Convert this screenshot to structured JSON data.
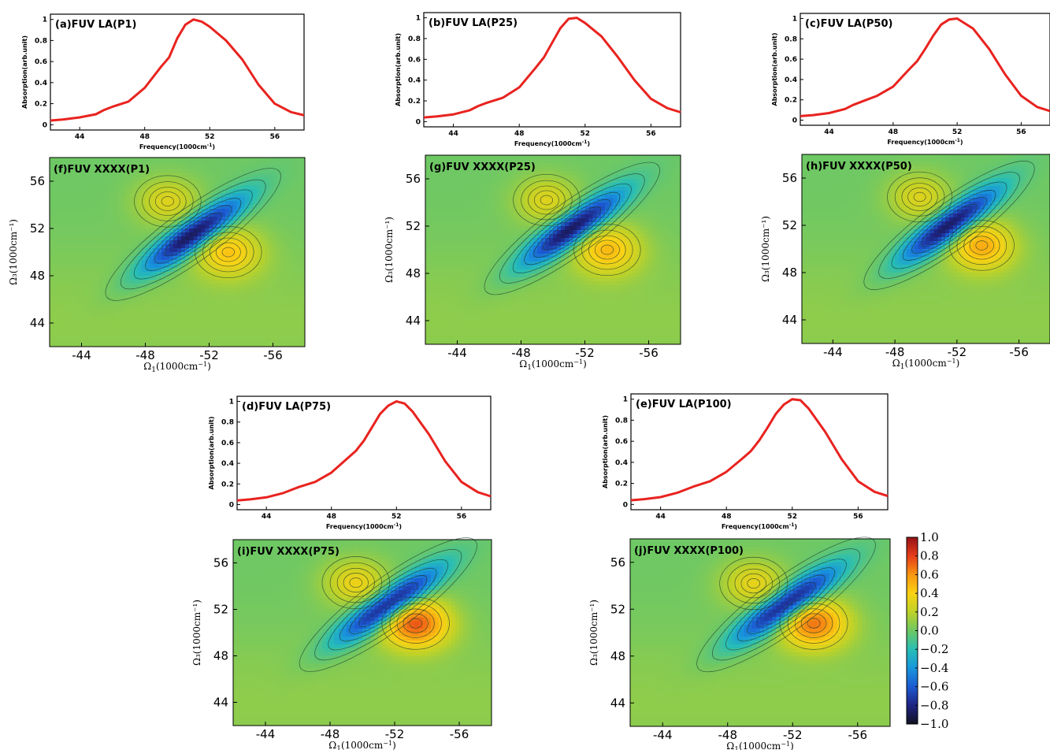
{
  "chart_data": {
    "type": "figure",
    "colorbar": {
      "ticks": [
        "1.0",
        "0.8",
        "0.6",
        "0.4",
        "0.2",
        "0.0",
        "−0.2",
        "−0.4",
        "−0.6",
        "−0.8",
        "−1.0"
      ],
      "range": [
        -1.0,
        1.0
      ],
      "colormap": "parula-jet"
    },
    "absorption_panels": [
      {
        "id": "a",
        "title": "(a)FUV LA(P1)",
        "type": "line",
        "xlabel": "Frequency(1000cm",
        "xlabel_sup": "-1",
        "xlabel_end": ")",
        "ylabel": "Absorption(arb.unit)",
        "xticks": [
          "44",
          "48",
          "52",
          "56"
        ],
        "yticks": [
          "0",
          "0.2",
          "0.4",
          "0.6",
          "0.8",
          "1"
        ],
        "xlim": [
          42.2,
          57.8
        ],
        "ylim": [
          -0.05,
          1.05
        ],
        "peak": 51.0,
        "series": [
          {
            "color": "#e8231f",
            "x": [
              42.2,
              43,
              44,
              45,
              45.5,
              46,
              47,
              48,
              49,
              49.5,
              50,
              50.5,
              51,
              51.5,
              52,
              53,
              54,
              55,
              56,
              57,
              57.8
            ],
            "y": [
              0.04,
              0.05,
              0.07,
              0.1,
              0.14,
              0.17,
              0.22,
              0.35,
              0.55,
              0.64,
              0.82,
              0.95,
              1.0,
              0.98,
              0.93,
              0.8,
              0.62,
              0.38,
              0.2,
              0.12,
              0.09
            ]
          }
        ]
      },
      {
        "id": "b",
        "title": "(b)FUV LA(P25)",
        "type": "line",
        "xlabel": "Frequency(1000cm",
        "xlabel_sup": "-1",
        "xlabel_end": ")",
        "ylabel": "Absorption(arb.unit)",
        "xticks": [
          "44",
          "48",
          "52",
          "56"
        ],
        "yticks": [
          "0",
          "0.2",
          "0.4",
          "0.6",
          "0.8",
          "1"
        ],
        "xlim": [
          42.2,
          57.8
        ],
        "ylim": [
          -0.05,
          1.05
        ],
        "peak": 51.3,
        "series": [
          {
            "color": "#e8231f",
            "x": [
              42.2,
              43,
              44,
              45,
              45.5,
              46,
              47,
              48,
              49,
              49.5,
              50,
              50.5,
              51,
              51.5,
              52,
              53,
              54,
              55,
              56,
              57,
              57.8
            ],
            "y": [
              0.04,
              0.05,
              0.07,
              0.11,
              0.15,
              0.18,
              0.23,
              0.33,
              0.52,
              0.62,
              0.76,
              0.9,
              0.99,
              1.0,
              0.95,
              0.82,
              0.62,
              0.4,
              0.22,
              0.13,
              0.09
            ]
          }
        ]
      },
      {
        "id": "c",
        "title": "(c)FUV LA(P50)",
        "type": "line",
        "xlabel": "Frequency(1000cm",
        "xlabel_sup": "-1",
        "xlabel_end": ")",
        "ylabel": "Absorption(arb.unit)",
        "xticks": [
          "44",
          "48",
          "52",
          "56"
        ],
        "yticks": [
          "0",
          "0.2",
          "0.4",
          "0.6",
          "0.8",
          "1"
        ],
        "xlim": [
          42.2,
          57.8
        ],
        "ylim": [
          -0.05,
          1.05
        ],
        "peak": 51.8,
        "series": [
          {
            "color": "#e8231f",
            "x": [
              42.2,
              43,
              44,
              45,
              45.5,
              46,
              47,
              48,
              49,
              49.5,
              50,
              50.5,
              51,
              51.5,
              52,
              53,
              54,
              55,
              56,
              57,
              57.8
            ],
            "y": [
              0.04,
              0.05,
              0.07,
              0.11,
              0.15,
              0.18,
              0.24,
              0.33,
              0.5,
              0.58,
              0.7,
              0.83,
              0.94,
              0.99,
              1.0,
              0.9,
              0.7,
              0.45,
              0.24,
              0.13,
              0.09
            ]
          }
        ]
      },
      {
        "id": "d",
        "title": "(d)FUV LA(P75)",
        "type": "line",
        "xlabel": "Frequency(1000cm",
        "xlabel_sup": "-1",
        "xlabel_end": ")",
        "ylabel": "Absorption(arb.unit)",
        "xticks": [
          "44",
          "48",
          "52",
          "56"
        ],
        "yticks": [
          "0",
          "0.2",
          "0.4",
          "0.6",
          "0.8",
          "1"
        ],
        "xlim": [
          42.2,
          57.8
        ],
        "ylim": [
          -0.05,
          1.05
        ],
        "peak": 52.1,
        "series": [
          {
            "color": "#e8231f",
            "x": [
              42.2,
              43,
              44,
              45,
              45.5,
              46,
              47,
              48,
              49,
              49.5,
              50,
              50.5,
              51,
              51.5,
              52,
              52.5,
              53,
              54,
              55,
              56,
              57,
              57.8
            ],
            "y": [
              0.04,
              0.05,
              0.07,
              0.11,
              0.14,
              0.17,
              0.22,
              0.31,
              0.45,
              0.52,
              0.62,
              0.75,
              0.88,
              0.96,
              1.0,
              0.98,
              0.9,
              0.68,
              0.42,
              0.22,
              0.12,
              0.08
            ]
          }
        ]
      },
      {
        "id": "e",
        "title": "(e)FUV LA(P100)",
        "type": "line",
        "xlabel": "Frequency(1000cm",
        "xlabel_sup": "-1",
        "xlabel_end": ")",
        "ylabel": "Absorption(arb.unit)",
        "xticks": [
          "44",
          "48",
          "52",
          "56"
        ],
        "yticks": [
          "0",
          "0.2",
          "0.4",
          "0.6",
          "0.8",
          "1"
        ],
        "xlim": [
          42.2,
          57.8
        ],
        "ylim": [
          -0.05,
          1.05
        ],
        "peak": 52.2,
        "series": [
          {
            "color": "#e8231f",
            "x": [
              42.2,
              43,
              44,
              45,
              45.5,
              46,
              47,
              48,
              49,
              49.5,
              50,
              50.5,
              51,
              51.5,
              52,
              52.5,
              53,
              54,
              55,
              56,
              57,
              57.8
            ],
            "y": [
              0.04,
              0.05,
              0.07,
              0.11,
              0.14,
              0.17,
              0.22,
              0.31,
              0.44,
              0.51,
              0.61,
              0.73,
              0.86,
              0.95,
              1.0,
              0.99,
              0.91,
              0.69,
              0.43,
              0.22,
              0.12,
              0.08
            ]
          }
        ]
      }
    ],
    "spectra_panels": [
      {
        "id": "f",
        "title": "(f)FUV XXXX(P1)",
        "type": "heatmap",
        "xlabel": "Ω",
        "xlabel_sub": "1",
        "xlabel_end": "(1000cm",
        "xlabel_sup": "−1",
        "xlabel_close": ")",
        "ylabel": "Ω₃(1000cm⁻¹)",
        "xticks": [
          "-44",
          "-48",
          "-52",
          "-56"
        ],
        "yticks": [
          "44",
          "48",
          "52",
          "56"
        ],
        "xlim": [
          -42,
          -58
        ],
        "ylim": [
          42,
          58
        ],
        "features": {
          "center": [
            -51.0,
            51.5
          ],
          "neg_amp": -1.0,
          "pos_low": [
            -53.2,
            50.0,
            0.42
          ],
          "pos_up": [
            -49.4,
            54.3,
            0.3
          ]
        }
      },
      {
        "id": "g",
        "title": "(g)FUV XXXX(P25)",
        "type": "heatmap",
        "xlabel": "Ω",
        "xlabel_sub": "1",
        "xlabel_end": "(1000cm",
        "xlabel_sup": "−1",
        "xlabel_close": ")",
        "ylabel": "Ω₃(1000cm⁻¹)",
        "xticks": [
          "-44",
          "-48",
          "-52",
          "-56"
        ],
        "yticks": [
          "44",
          "48",
          "52",
          "56"
        ],
        "xlim": [
          -42,
          -58
        ],
        "ylim": [
          42,
          58
        ],
        "features": {
          "center": [
            -51.2,
            51.8
          ],
          "neg_amp": -1.0,
          "pos_low": [
            -53.4,
            50.0,
            0.45
          ],
          "pos_up": [
            -49.6,
            54.2,
            0.3
          ]
        }
      },
      {
        "id": "h",
        "title": "(h)FUV XXXX(P50)",
        "type": "heatmap",
        "xlabel": "Ω",
        "xlabel_sub": "1",
        "xlabel_end": "(1000cm",
        "xlabel_sup": "−1",
        "xlabel_close": ")",
        "ylabel": "Ω₃(1000cm⁻¹)",
        "xticks": [
          "-44",
          "-48",
          "-52",
          "-56"
        ],
        "yticks": [
          "44",
          "48",
          "52",
          "56"
        ],
        "xlim": [
          -42,
          -58
        ],
        "ylim": [
          42,
          58
        ],
        "features": {
          "center": [
            -51.5,
            52.0
          ],
          "neg_amp": -1.0,
          "pos_low": [
            -53.6,
            50.3,
            0.5
          ],
          "pos_up": [
            -49.6,
            54.4,
            0.3
          ]
        }
      },
      {
        "id": "i",
        "title": "(i)FUV XXXX(P75)",
        "type": "heatmap",
        "xlabel": "Ω",
        "xlabel_sub": "1",
        "xlabel_end": "(1000cm",
        "xlabel_sup": "−1",
        "xlabel_close": ")",
        "ylabel": "Ω₃(1000cm⁻¹)",
        "xticks": [
          "-44",
          "-48",
          "-52",
          "-56"
        ],
        "yticks": [
          "44",
          "48",
          "52",
          "56"
        ],
        "xlim": [
          -42,
          -58
        ],
        "ylim": [
          42,
          58
        ],
        "features": {
          "center": [
            -51.6,
            52.4
          ],
          "neg_amp": -1.0,
          "pos_low": [
            -53.3,
            50.8,
            0.72
          ],
          "pos_up": [
            -49.6,
            54.3,
            0.35
          ]
        }
      },
      {
        "id": "j",
        "title": "(j)FUV XXXX(P100)",
        "type": "heatmap",
        "xlabel": "Ω",
        "xlabel_sub": "1",
        "xlabel_end": "(1000cm",
        "xlabel_sup": "−1",
        "xlabel_close": ")",
        "ylabel": "Ω₃(1000cm⁻¹)",
        "xticks": [
          "-44",
          "-48",
          "-52",
          "-56"
        ],
        "yticks": [
          "44",
          "48",
          "52",
          "56"
        ],
        "xlim": [
          -42,
          -58
        ],
        "ylim": [
          42,
          58
        ],
        "features": {
          "center": [
            -51.6,
            52.4
          ],
          "neg_amp": -1.0,
          "pos_low": [
            -53.3,
            50.8,
            0.65
          ],
          "pos_up": [
            -49.6,
            54.2,
            0.33
          ]
        }
      }
    ]
  }
}
